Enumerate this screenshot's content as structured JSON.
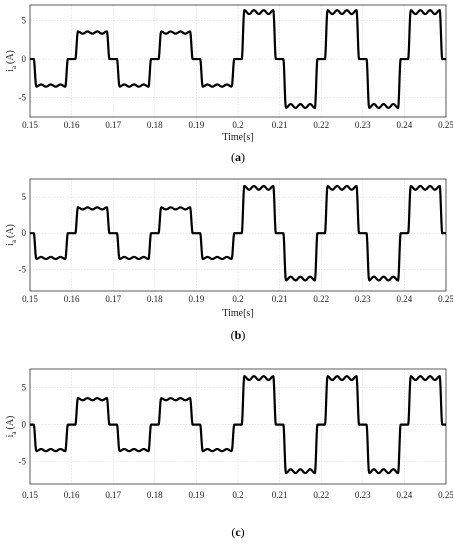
{
  "chart_data": [
    {
      "type": "line",
      "panel": "(a)",
      "panel_letter": "a",
      "title": "",
      "ylabel": "i_a (A)",
      "ylabel_main": "i",
      "ylabel_sub": "a",
      "ylabel_unit": "(A)",
      "xlabel": "Time[s]",
      "xlim": [
        0.15,
        0.25
      ],
      "ylim": [
        -7.5,
        7
      ],
      "xticks": [
        "0.15",
        "0.16",
        "0.17",
        "0.18",
        "0.19",
        "0.2",
        "0.21",
        "0.22",
        "0.23",
        "0.24",
        "0.25"
      ],
      "yticks": [
        "5",
        "0",
        "-5"
      ],
      "grid": true,
      "series": [
        {
          "waveform": "six-step phase current, 50 Hz, amplitude 3.5 A before t = 0.2 s and 6.2 A after",
          "frequency_hz": 50,
          "amplitude_before": 3.5,
          "amplitude_after": 6.2,
          "step_time": 0.2
        }
      ]
    },
    {
      "type": "line",
      "panel": "(b)",
      "panel_letter": "b",
      "title": "",
      "ylabel": "i_a (A)",
      "ylabel_main": "i",
      "ylabel_sub": "a",
      "ylabel_unit": "(A)",
      "xlabel": "Time[s]",
      "xlim": [
        0.15,
        0.25
      ],
      "ylim": [
        -8,
        7.5
      ],
      "xticks": [
        "0.15",
        "0.16",
        "0.17",
        "0.18",
        "0.19",
        "0.2",
        "0.21",
        "0.22",
        "0.23",
        "0.24",
        "0.25"
      ],
      "yticks": [
        "5",
        "0",
        "-5"
      ],
      "grid": true,
      "series": [
        {
          "waveform": "six-step phase current, 50 Hz, amplitude 3.5 A before t = 0.2 s and 6.4 A after",
          "frequency_hz": 50,
          "amplitude_before": 3.5,
          "amplitude_after": 6.4,
          "step_time": 0.2
        }
      ]
    },
    {
      "type": "line",
      "panel": "(c)",
      "panel_letter": "c",
      "title": "",
      "ylabel": "i_a (A)",
      "ylabel_main": "i",
      "ylabel_sub": "a",
      "ylabel_unit": "(A)",
      "xlabel": "",
      "xlim": [
        0.15,
        0.25
      ],
      "ylim": [
        -8,
        7.5
      ],
      "xticks": [
        "0.15",
        "0.16",
        "0.17",
        "0.18",
        "0.19",
        "0.2",
        "0.21",
        "0.22",
        "0.23",
        "0.24",
        "0.25"
      ],
      "yticks": [
        "5",
        "0",
        "-5"
      ],
      "grid": true,
      "series": [
        {
          "waveform": "six-step phase current, 50 Hz, amplitude 3.5 A before t = 0.2 s and 6.4 A after",
          "frequency_hz": 50,
          "amplitude_before": 3.5,
          "amplitude_after": 6.4,
          "step_time": 0.2
        }
      ]
    }
  ]
}
